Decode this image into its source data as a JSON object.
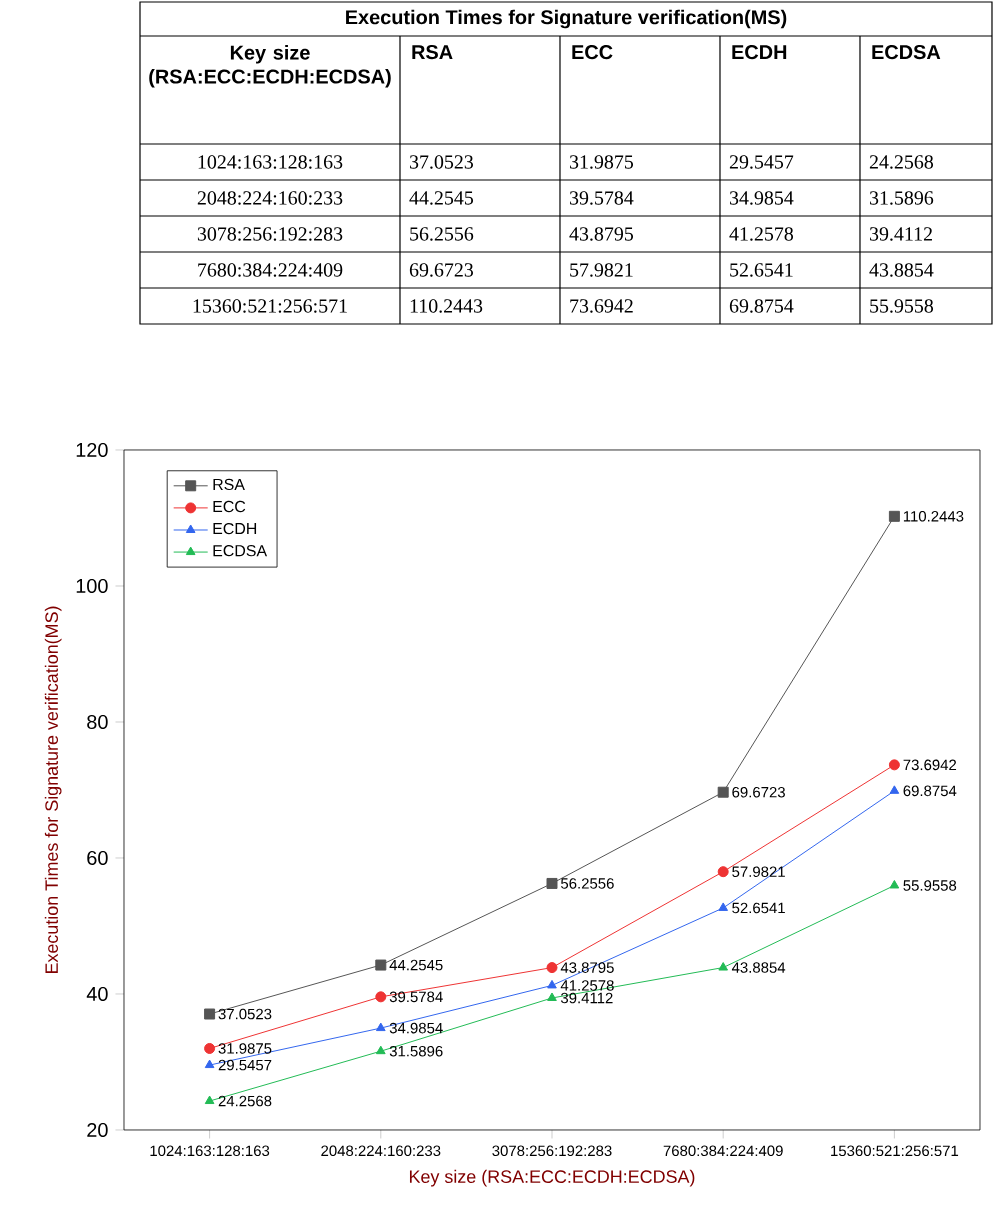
{
  "chart_data": {
    "type": "line",
    "title": "Execution Times for Signature verification(MS)",
    "xlabel": "Key size (RSA:ECC:ECDH:ECDSA)",
    "ylabel": "Execution Times for Signature verification(MS)",
    "categories": [
      "1024:163:128:163",
      "2048:224:160:233",
      "3078:256:192:283",
      "7680:384:224:409",
      "15360:521:256:571"
    ],
    "series": [
      {
        "name": "RSA",
        "color": "#555555",
        "marker": "square",
        "values": [
          37.0523,
          44.2545,
          56.2556,
          69.6723,
          110.2443
        ],
        "value_labels": [
          "37.0523",
          "44.2545",
          "56.2556",
          "69.6723",
          "110.2443"
        ]
      },
      {
        "name": "ECC",
        "color": "#ee3333",
        "marker": "circle",
        "values": [
          31.9875,
          39.5784,
          43.8795,
          57.9821,
          73.6942
        ],
        "value_labels": [
          "31.9875",
          "39.5784",
          "43.8795",
          "57.9821",
          "73.6942"
        ]
      },
      {
        "name": "ECDH",
        "color": "#3366ee",
        "marker": "triangle",
        "values": [
          29.5457,
          34.9854,
          41.2578,
          52.6541,
          69.8754
        ],
        "value_labels": [
          "29.5457",
          "34.9854",
          "41.2578",
          "52.6541",
          "69.8754"
        ]
      },
      {
        "name": "ECDSA",
        "color": "#22bb55",
        "marker": "triangle",
        "values": [
          24.2568,
          31.5896,
          39.4112,
          43.8854,
          55.9558
        ],
        "value_labels": [
          "24.2568",
          "31.5896",
          "39.4112",
          "43.8854",
          "55.9558"
        ]
      }
    ],
    "ylim": [
      20,
      120
    ],
    "yticks": [
      20,
      40,
      60,
      80,
      100,
      120
    ],
    "data_labels": true,
    "legend": "top left",
    "grid": false
  }
}
